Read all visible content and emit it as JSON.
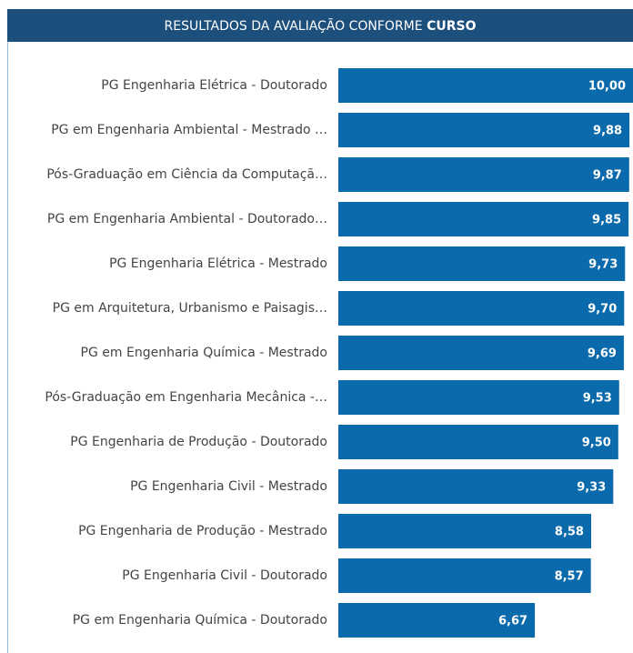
{
  "chart_data": {
    "type": "bar",
    "orientation": "horizontal",
    "title": "RESULTADOS DA AVALIAÇÃO CONFORME",
    "title_bold": "CURSO",
    "categories": [
      "PG Engenharia Elétrica - Doutorado",
      "PG em Engenharia Ambiental - Mestrado …",
      "Pós-Graduação em Ciência da Computaçã…",
      "PG em Engenharia Ambiental - Doutorado…",
      "PG Engenharia Elétrica - Mestrado",
      "PG em Arquitetura, Urbanismo e Paisagis…",
      "PG em Engenharia Química - Mestrado",
      "Pós-Graduação em Engenharia Mecânica -…",
      "PG Engenharia de Produção - Doutorado",
      "PG Engenharia Civil - Mestrado",
      "PG Engenharia de Produção - Mestrado",
      "PG Engenharia Civil - Doutorado",
      "PG em Engenharia Química - Doutorado"
    ],
    "values": [
      10,
      9.88,
      9.87,
      9.85,
      9.73,
      9.7,
      9.69,
      9.53,
      9.5,
      9.33,
      8.58,
      8.57,
      6.67
    ],
    "value_labels": [
      "10,00",
      "9,88",
      "9,87",
      "9,85",
      "9,73",
      "9,70",
      "9,69",
      "9,53",
      "9,50",
      "9,33",
      "8,58",
      "8,57",
      "6,67"
    ],
    "color": "#0b6aab"
  }
}
